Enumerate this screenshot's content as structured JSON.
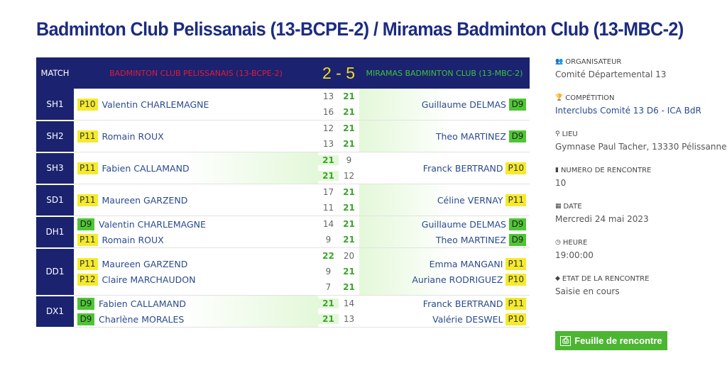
{
  "page": {
    "title": "Badminton Club Pelissanais (13-BCPE-2) / Miramas Badminton Club (13-MBC-2)"
  },
  "header": {
    "match_label": "MATCH",
    "home_team": "BADMINTON CLUB PELISSANAIS (13-BCPE-2)",
    "score": "2 - 5",
    "away_team": "MIRAMAS BADMINTON CLUB (13-MBC-2)"
  },
  "colors": {
    "navy": "#1b2270",
    "title": "#1c2b82",
    "home": "#e01b3a",
    "away": "#3fc23a",
    "score": "#f2dc1e",
    "rank_p": "#f5ea2c",
    "rank_d": "#4ec634",
    "win_bg": "#e3f8d9",
    "button": "#4cb632"
  },
  "matches": [
    {
      "code": "SH1",
      "winner": "away",
      "home": [
        {
          "rank": "P10",
          "name": "Valentin CHARLEMAGNE"
        }
      ],
      "away": [
        {
          "rank": "D9",
          "name": "Guillaume DELMAS"
        }
      ],
      "sets": [
        {
          "home": "13",
          "away": "21"
        },
        {
          "home": "16",
          "away": "21"
        }
      ]
    },
    {
      "code": "SH2",
      "winner": "away",
      "home": [
        {
          "rank": "P11",
          "name": "Romain ROUX"
        }
      ],
      "away": [
        {
          "rank": "D9",
          "name": "Theo MARTINEZ"
        }
      ],
      "sets": [
        {
          "home": "12",
          "away": "21"
        },
        {
          "home": "13",
          "away": "21"
        }
      ]
    },
    {
      "code": "SH3",
      "winner": "home",
      "home": [
        {
          "rank": "P11",
          "name": "Fabien CALLAMAND"
        }
      ],
      "away": [
        {
          "rank": "P10",
          "name": "Franck BERTRAND"
        }
      ],
      "sets": [
        {
          "home": "21",
          "away": "9"
        },
        {
          "home": "21",
          "away": "12"
        }
      ]
    },
    {
      "code": "SD1",
      "winner": "away",
      "home": [
        {
          "rank": "P11",
          "name": "Maureen GARZEND"
        }
      ],
      "away": [
        {
          "rank": "P11",
          "name": "Céline VERNAY"
        }
      ],
      "sets": [
        {
          "home": "17",
          "away": "21"
        },
        {
          "home": "11",
          "away": "21"
        }
      ]
    },
    {
      "code": "DH1",
      "winner": "away",
      "home": [
        {
          "rank": "D9",
          "name": "Valentin CHARLEMAGNE"
        },
        {
          "rank": "P11",
          "name": "Romain ROUX"
        }
      ],
      "away": [
        {
          "rank": "D9",
          "name": "Guillaume DELMAS"
        },
        {
          "rank": "D9",
          "name": "Theo MARTINEZ"
        }
      ],
      "sets": [
        {
          "home": "14",
          "away": "21"
        },
        {
          "home": "9",
          "away": "21"
        }
      ]
    },
    {
      "code": "DD1",
      "winner": "away",
      "home": [
        {
          "rank": "P11",
          "name": "Maureen GARZEND"
        },
        {
          "rank": "P12",
          "name": "Claire MARCHAUDON"
        }
      ],
      "away": [
        {
          "rank": "P11",
          "name": "Emma MANGANI"
        },
        {
          "rank": "P10",
          "name": "Auriane RODRIGUEZ"
        }
      ],
      "sets": [
        {
          "home": "22",
          "away": "20"
        },
        {
          "home": "9",
          "away": "21"
        },
        {
          "home": "7",
          "away": "21"
        }
      ]
    },
    {
      "code": "DX1",
      "winner": "home",
      "home": [
        {
          "rank": "D9",
          "name": "Fabien CALLAMAND"
        },
        {
          "rank": "D9",
          "name": "Charlène MORALES"
        }
      ],
      "away": [
        {
          "rank": "P11",
          "name": "Franck BERTRAND"
        },
        {
          "rank": "P10",
          "name": "Valérie DESWEL"
        }
      ],
      "sets": [
        {
          "home": "21",
          "away": "14"
        },
        {
          "home": "21",
          "away": "13"
        }
      ]
    }
  ],
  "info": [
    {
      "icon": "group-icon",
      "glyph": "👥",
      "label": "ORGANISATEUR",
      "value": "Comité Départemental 13",
      "link": false
    },
    {
      "icon": "trophy-icon",
      "glyph": "🏆",
      "label": "COMPÉTITION",
      "value": "Interclubs Comité 13 D6 - ICA BdR",
      "link": true
    },
    {
      "icon": "map-marker-icon",
      "glyph": "⚲",
      "label": "LIEU",
      "value": "Gymnase Paul Tacher, 13330 Pélissanne",
      "link": false
    },
    {
      "icon": "bookmark-icon",
      "glyph": "▮",
      "label": "NUMERO DE RENCONTRE",
      "value": "10",
      "link": false
    },
    {
      "icon": "calendar-icon",
      "glyph": "▦",
      "label": "DATE",
      "value": "Mercredi 24 mai 2023",
      "link": false
    },
    {
      "icon": "clock-icon",
      "glyph": "◷",
      "label": "HEURE",
      "value": "19:00:00",
      "link": false
    },
    {
      "icon": "tag-icon",
      "glyph": "◆",
      "label": "ETAT DE LA RENCONTRE",
      "value": "Saisie en cours",
      "link": false
    }
  ],
  "button": {
    "label": "Feuille de rencontre",
    "icon": "pdf-file-icon",
    "glyph": "⎙"
  }
}
